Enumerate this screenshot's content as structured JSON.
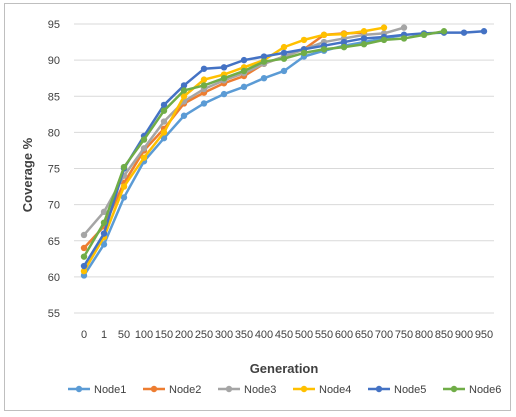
{
  "chart_data": {
    "type": "line",
    "title": "",
    "xlabel": "Generation",
    "ylabel": "Coverage %",
    "categories": [
      "0",
      "1",
      "50",
      "100",
      "150",
      "200",
      "250",
      "300",
      "350",
      "400",
      "450",
      "500",
      "550",
      "600",
      "650",
      "700",
      "750",
      "800",
      "850",
      "900",
      "950"
    ],
    "ylim": [
      55,
      95
    ],
    "yticks": [
      55,
      60,
      65,
      70,
      75,
      80,
      85,
      90,
      95
    ],
    "grid": "horizontal",
    "legend_position": "bottom",
    "series": [
      {
        "name": "Node1",
        "color": "#5B9BD5",
        "values": [
          60.2,
          64.5,
          71.0,
          76.0,
          79.2,
          82.3,
          84.0,
          85.3,
          86.3,
          87.5,
          88.5,
          90.5,
          91.3,
          92.0,
          92.5,
          93.0,
          93.5,
          null,
          null,
          null,
          null
        ]
      },
      {
        "name": "Node2",
        "color": "#ED7D31",
        "values": [
          64.0,
          67.0,
          73.0,
          77.5,
          80.5,
          84.0,
          85.5,
          86.8,
          87.8,
          89.5,
          90.5,
          91.5,
          93.5,
          93.7,
          93.8,
          null,
          null,
          null,
          null,
          null,
          null
        ]
      },
      {
        "name": "Node3",
        "color": "#A5A5A5",
        "values": [
          65.8,
          69.0,
          74.0,
          77.8,
          81.5,
          84.3,
          86.0,
          87.2,
          88.2,
          89.5,
          90.5,
          91.5,
          92.5,
          93.0,
          93.5,
          93.7,
          94.5,
          null,
          null,
          null,
          null
        ]
      },
      {
        "name": "Node4",
        "color": "#FFC000",
        "values": [
          60.8,
          65.5,
          72.5,
          76.5,
          80.0,
          85.0,
          87.3,
          88.0,
          89.0,
          90.0,
          91.8,
          92.8,
          93.5,
          93.6,
          94.0,
          94.5,
          null,
          null,
          null,
          null,
          null
        ]
      },
      {
        "name": "Node5",
        "color": "#4472C4",
        "values": [
          61.5,
          66.0,
          75.0,
          79.5,
          83.8,
          86.5,
          88.8,
          89.0,
          90.0,
          90.5,
          91.0,
          91.5,
          92.0,
          92.5,
          93.0,
          93.2,
          93.5,
          93.7,
          93.8,
          93.8,
          94.0
        ]
      },
      {
        "name": "Node6",
        "color": "#70AD47",
        "values": [
          62.8,
          67.5,
          75.2,
          79.0,
          83.0,
          85.8,
          86.5,
          87.5,
          88.5,
          89.8,
          90.2,
          91.0,
          91.5,
          91.8,
          92.2,
          92.8,
          93.0,
          93.5,
          94.0,
          null,
          null
        ]
      }
    ]
  }
}
